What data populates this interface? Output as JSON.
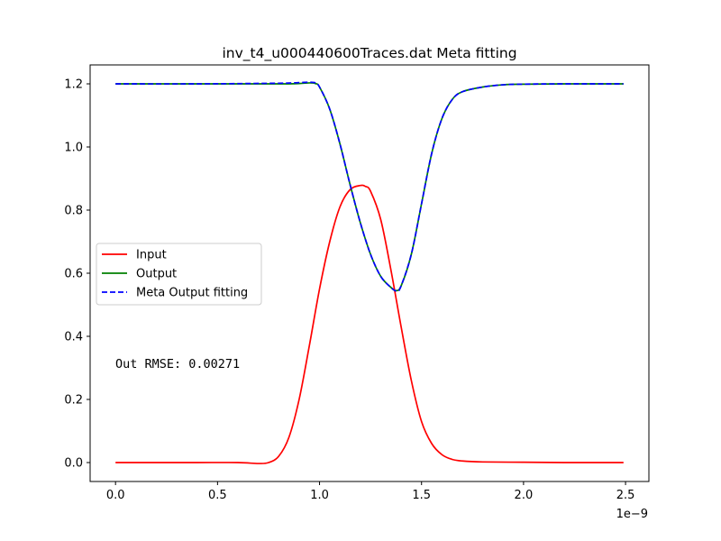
{
  "chart_data": {
    "type": "line",
    "title": "inv_t4_u000440600Traces.dat Meta fitting",
    "xlabel": "",
    "ylabel": "",
    "x_offset_label": "1e−9",
    "xlim": [
      -0.1245,
      2.6145
    ],
    "ylim": [
      -0.06,
      1.26
    ],
    "x_ticks": [
      0.0,
      0.5,
      1.0,
      1.5,
      2.0,
      2.5
    ],
    "x_tick_labels": [
      "0.0",
      "0.5",
      "1.0",
      "1.5",
      "2.0",
      "2.5"
    ],
    "y_ticks": [
      0.0,
      0.2,
      0.4,
      0.6,
      0.8,
      1.0,
      1.2
    ],
    "y_tick_labels": [
      "0.0",
      "0.2",
      "0.4",
      "0.6",
      "0.8",
      "1.0",
      "1.2"
    ],
    "grid": false,
    "legend": {
      "location": "center-left"
    },
    "annotation": "Out RMSE: 0.00271",
    "series": [
      {
        "name": "Input",
        "color": "#ff0000",
        "style": "solid",
        "x": [
          0.0,
          0.2,
          0.4,
          0.6,
          0.7,
          0.75,
          0.8,
          0.85,
          0.9,
          0.95,
          1.0,
          1.05,
          1.1,
          1.15,
          1.2,
          1.225,
          1.25,
          1.3,
          1.35,
          1.4,
          1.45,
          1.5,
          1.55,
          1.6,
          1.65,
          1.7,
          1.8,
          2.0,
          2.2,
          2.49
        ],
        "values": [
          0.0,
          0.0,
          0.0,
          0.0,
          -0.003,
          0.0,
          0.02,
          0.08,
          0.2,
          0.37,
          0.55,
          0.7,
          0.81,
          0.865,
          0.878,
          0.875,
          0.86,
          0.77,
          0.61,
          0.43,
          0.26,
          0.13,
          0.06,
          0.025,
          0.01,
          0.005,
          0.002,
          0.001,
          0.0,
          0.0
        ]
      },
      {
        "name": "Output",
        "color": "#008000",
        "style": "solid",
        "x": [
          0.0,
          0.4,
          0.8,
          0.9,
          0.95,
          0.98,
          1.0,
          1.05,
          1.1,
          1.15,
          1.2,
          1.25,
          1.3,
          1.35,
          1.375,
          1.4,
          1.45,
          1.5,
          1.55,
          1.6,
          1.65,
          1.7,
          1.8,
          1.9,
          2.0,
          2.2,
          2.49
        ],
        "values": [
          1.2,
          1.2,
          1.2,
          1.201,
          1.203,
          1.201,
          1.19,
          1.12,
          1.01,
          0.88,
          0.76,
          0.66,
          0.59,
          0.555,
          0.545,
          0.56,
          0.66,
          0.82,
          0.98,
          1.09,
          1.15,
          1.175,
          1.19,
          1.197,
          1.199,
          1.2,
          1.2
        ]
      },
      {
        "name": "Meta Output fitting",
        "color": "#0000ff",
        "style": "dashed",
        "x": [
          0.0,
          0.4,
          0.8,
          0.9,
          0.95,
          0.98,
          1.0,
          1.05,
          1.1,
          1.15,
          1.2,
          1.25,
          1.3,
          1.35,
          1.38,
          1.4,
          1.45,
          1.5,
          1.55,
          1.6,
          1.65,
          1.7,
          1.8,
          1.9,
          2.0,
          2.2,
          2.49
        ],
        "values": [
          1.2,
          1.2,
          1.202,
          1.204,
          1.205,
          1.203,
          1.19,
          1.12,
          1.01,
          0.88,
          0.76,
          0.66,
          0.59,
          0.555,
          0.543,
          0.56,
          0.66,
          0.82,
          0.98,
          1.09,
          1.15,
          1.175,
          1.19,
          1.197,
          1.199,
          1.2,
          1.2
        ]
      }
    ]
  }
}
